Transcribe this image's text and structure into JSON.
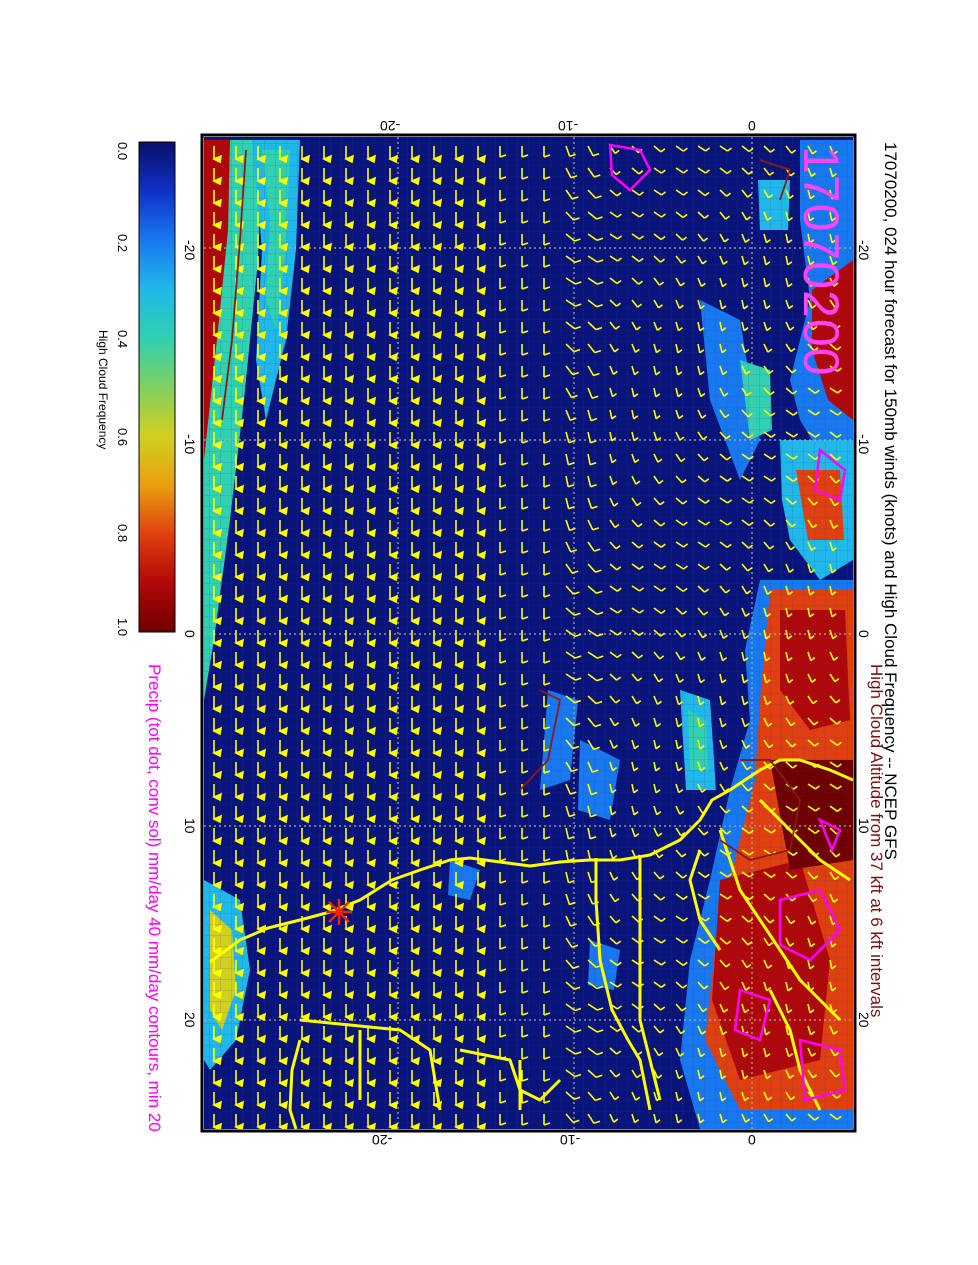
{
  "title": "17070200, 024 hour forecast for 150mb winds (knots) and High Cloud Frequency -- NCEP GFS",
  "stamp": "17070200",
  "caption_line1": "High Cloud Altitude from 37 kft at 6 kft intervals",
  "caption_line2": "Precip (tot dot, conv sol) mm/day 40 mm/day contours, min 20",
  "colorbar": {
    "label": "High Cloud Frequency",
    "ticks": [
      "0.0",
      "0.2",
      "0.4",
      "0.6",
      "0.8",
      "1.0"
    ],
    "colors": [
      "#081068",
      "#1030c8",
      "#1878f0",
      "#20b8e8",
      "#30d0b0",
      "#80d060",
      "#d0d020",
      "#e8a010",
      "#e04010",
      "#b00808",
      "#700000"
    ]
  },
  "axes": {
    "top_ticks": [
      "-20",
      "-10",
      "0"
    ],
    "bottom_ticks": [
      "0",
      "-10",
      "-20"
    ],
    "left_ticks": [
      "-20",
      "-10",
      "0",
      "10",
      "20"
    ],
    "right_ticks": [
      "-20",
      "-10",
      "0",
      "10",
      "20"
    ]
  },
  "colors": {
    "ocean": "#08147a",
    "wind_barbs": "#ffff00",
    "coastline": "#ffff00",
    "precip_contour": "#ff00ff",
    "cloud_altitude_contour": "#8b1a1a",
    "stamp": "#ff44ff"
  }
}
